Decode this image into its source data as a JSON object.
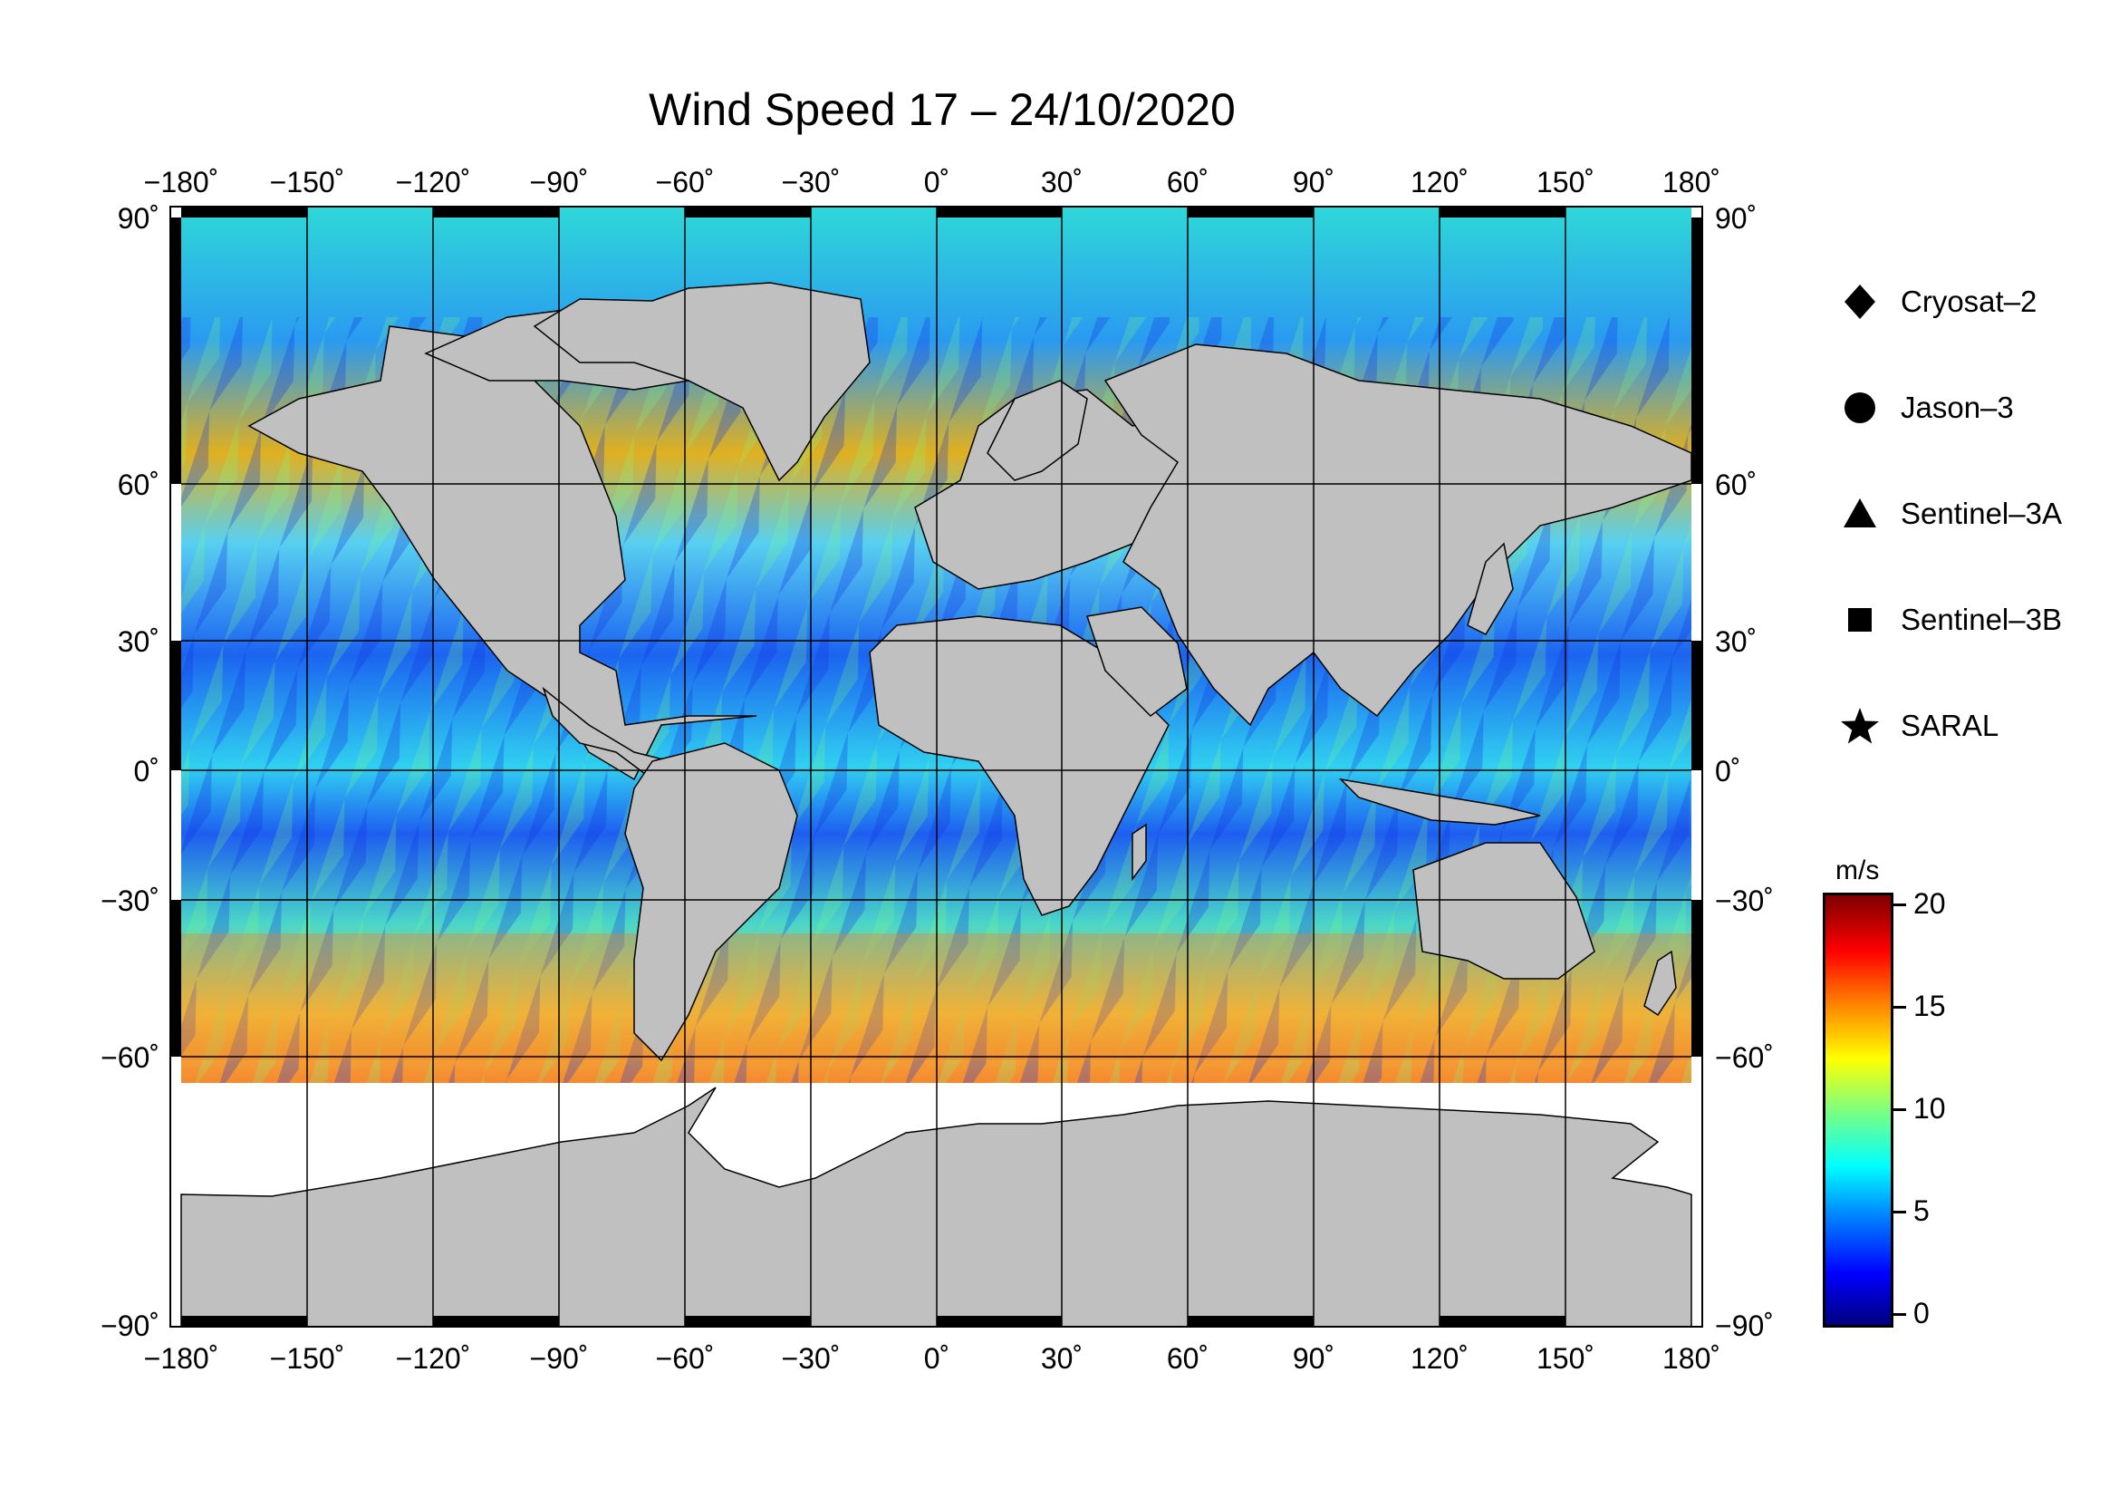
{
  "title": "Wind Speed 17 – 24/10/2020",
  "map": {
    "lon_ticks": [
      "−180˚",
      "−150˚",
      "−120˚",
      "−90˚",
      "−60˚",
      "−30˚",
      "0˚",
      "30˚",
      "60˚",
      "90˚",
      "120˚",
      "150˚",
      "180˚"
    ],
    "lat_ticks": [
      "90˚",
      "60˚",
      "30˚",
      "0˚",
      "−30˚",
      "−60˚",
      "−90˚"
    ],
    "land_color": "#c0c0c0",
    "ice_color": "#ffffff"
  },
  "legend": {
    "items": [
      {
        "label": "Cryosat–2",
        "symbol": "diamond"
      },
      {
        "label": "Jason–3",
        "symbol": "circle"
      },
      {
        "label": "Sentinel–3A",
        "symbol": "triangle"
      },
      {
        "label": "Sentinel–3B",
        "symbol": "square"
      },
      {
        "label": "SARAL",
        "symbol": "star"
      }
    ]
  },
  "colorbar": {
    "unit": "m/s",
    "ticks": [
      "20",
      "15",
      "10",
      "5",
      "0"
    ],
    "min": 0,
    "max": 20
  }
}
